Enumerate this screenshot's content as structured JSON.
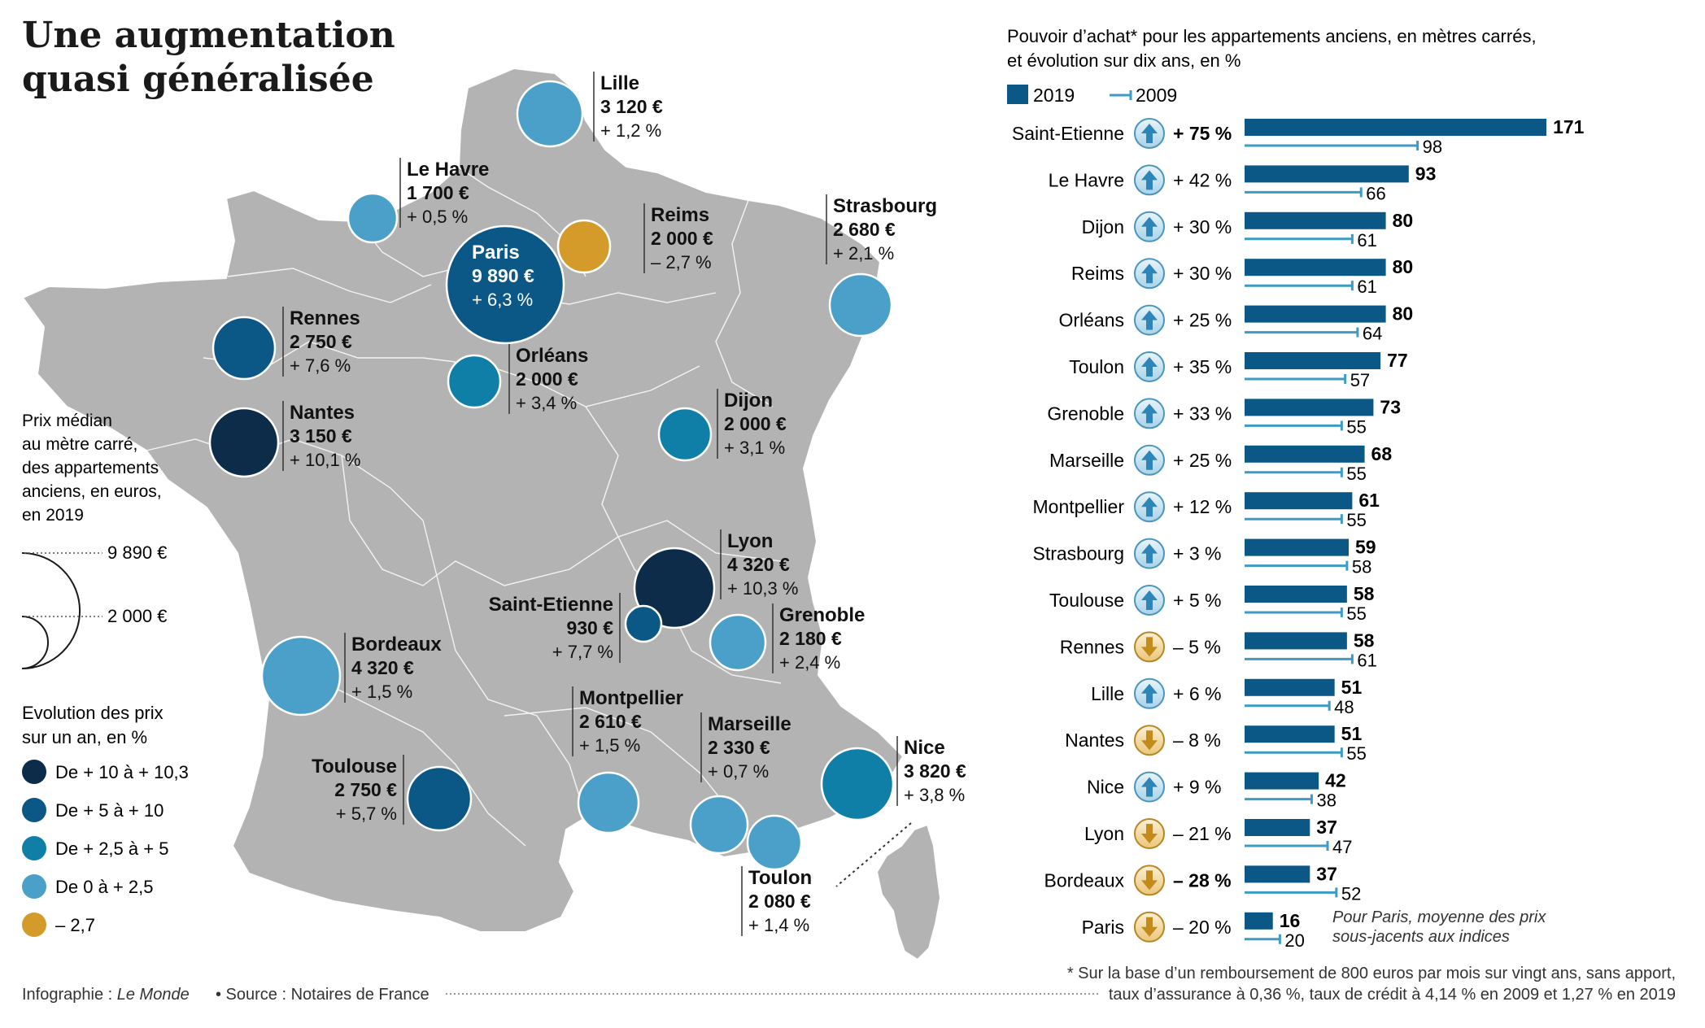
{
  "title_lines": [
    "Une augmentation",
    "quasi généralisée"
  ],
  "map": {
    "size_legend": {
      "title_lines": [
        "Prix médian",
        "au mètre carré,",
        "des appartements",
        "anciens, en euros,",
        "en 2019"
      ],
      "large_label": "9 890 €",
      "small_label": "2 000 €"
    },
    "color_legend": {
      "title_lines": [
        "Evolution des prix",
        "sur un an, en %"
      ],
      "items": [
        {
          "label": "De + 10 à + 10,3",
          "color": "#0c2c4a"
        },
        {
          "label": "De + 5 à + 10",
          "color": "#0b5887"
        },
        {
          "label": "De + 2,5 à + 5",
          "color": "#0f7fa8"
        },
        {
          "label": "De 0 à + 2,5",
          "color": "#4aa0c8"
        },
        {
          "label": "– 2,7",
          "color": "#d49b2a"
        }
      ]
    },
    "cities": [
      {
        "name": "Lille",
        "price": "3 120 €",
        "change": "+ 1,2 %",
        "price_value": 3120,
        "change_value": 1.2,
        "color": "#4aa0c8"
      },
      {
        "name": "Le Havre",
        "price": "1 700 €",
        "change": "+ 0,5 %",
        "price_value": 1700,
        "change_value": 0.5,
        "color": "#4aa0c8"
      },
      {
        "name": "Reims",
        "price": "2 000 €",
        "change": "– 2,7 %",
        "price_value": 2000,
        "change_value": -2.7,
        "color": "#d49b2a"
      },
      {
        "name": "Strasbourg",
        "price": "2 680 €",
        "change": "+ 2,1 %",
        "price_value": 2680,
        "change_value": 2.1,
        "color": "#4aa0c8"
      },
      {
        "name": "Paris",
        "price": "9 890 €",
        "change": "+ 6,3 %",
        "price_value": 9890,
        "change_value": 6.3,
        "color": "#0b5887"
      },
      {
        "name": "Rennes",
        "price": "2 750 €",
        "change": "+ 7,6 %",
        "price_value": 2750,
        "change_value": 7.6,
        "color": "#0b5887"
      },
      {
        "name": "Orléans",
        "price": "2 000 €",
        "change": "+ 3,4 %",
        "price_value": 2000,
        "change_value": 3.4,
        "color": "#0f7fa8"
      },
      {
        "name": "Nantes",
        "price": "3 150 €",
        "change": "+ 10,1 %",
        "price_value": 3150,
        "change_value": 10.1,
        "color": "#0c2c4a"
      },
      {
        "name": "Dijon",
        "price": "2 000 €",
        "change": "+ 3,1 %",
        "price_value": 2000,
        "change_value": 3.1,
        "color": "#0f7fa8"
      },
      {
        "name": "Lyon",
        "price": "4 320 €",
        "change": "+ 10,3 %",
        "price_value": 4320,
        "change_value": 10.3,
        "color": "#0c2c4a"
      },
      {
        "name": "Saint-Etienne",
        "price": "930 €",
        "change": "+ 7,7 %",
        "price_value": 930,
        "change_value": 7.7,
        "color": "#0b5887"
      },
      {
        "name": "Grenoble",
        "price": "2 180 €",
        "change": "+ 2,4 %",
        "price_value": 2180,
        "change_value": 2.4,
        "color": "#4aa0c8"
      },
      {
        "name": "Bordeaux",
        "price": "4 320 €",
        "change": "+ 1,5 %",
        "price_value": 4320,
        "change_value": 1.5,
        "color": "#4aa0c8"
      },
      {
        "name": "Montpellier",
        "price": "2 610 €",
        "change": "+ 1,5 %",
        "price_value": 2610,
        "change_value": 1.5,
        "color": "#4aa0c8"
      },
      {
        "name": "Marseille",
        "price": "2 330 €",
        "change": "+ 0,7 %",
        "price_value": 2330,
        "change_value": 0.7,
        "color": "#4aa0c8"
      },
      {
        "name": "Toulouse",
        "price": "2 750 €",
        "change": "+ 5,7 %",
        "price_value": 2750,
        "change_value": 5.7,
        "color": "#0b5887"
      },
      {
        "name": "Nice",
        "price": "3 820 €",
        "change": "+ 3,8 %",
        "price_value": 3820,
        "change_value": 3.8,
        "color": "#0f7fa8"
      },
      {
        "name": "Toulon",
        "price": "2 080 €",
        "change": "+ 1,4 %",
        "price_value": 2080,
        "change_value": 1.4,
        "color": "#4aa0c8"
      }
    ]
  },
  "chart_data": {
    "type": "bar",
    "title_lines": [
      "Pouvoir d’achat* pour les appartements anciens, en mètres carrés,",
      "et évolution sur dix ans, en %"
    ],
    "legend": [
      "2019",
      "2009"
    ],
    "series": [
      {
        "name": "2019",
        "color": "#0b5887"
      },
      {
        "name": "2009",
        "color": "#3d9bc4"
      }
    ],
    "categories": [
      "Saint-Etienne",
      "Le Havre",
      "Dijon",
      "Reims",
      "Orléans",
      "Toulon",
      "Grenoble",
      "Marseille",
      "Montpellier",
      "Strasbourg",
      "Toulouse",
      "Rennes",
      "Lille",
      "Nantes",
      "Nice",
      "Lyon",
      "Bordeaux",
      "Paris"
    ],
    "values_2019": [
      171,
      93,
      80,
      80,
      80,
      77,
      73,
      68,
      61,
      59,
      58,
      58,
      51,
      51,
      42,
      37,
      37,
      16
    ],
    "values_2009": [
      98,
      66,
      61,
      61,
      64,
      57,
      55,
      55,
      55,
      58,
      55,
      61,
      48,
      55,
      38,
      47,
      52,
      20
    ],
    "changes": [
      "+ 75 %",
      "+ 42 %",
      "+ 30 %",
      "+ 30 %",
      "+ 25 %",
      "+ 35 %",
      "+ 33 %",
      "+ 25 %",
      "+ 12 %",
      "+ 3 %",
      "+ 5 %",
      "– 5 %",
      "+ 6 %",
      "– 8 %",
      "+ 9 %",
      "– 21 %",
      "– 28 %",
      "– 20 %"
    ],
    "directions": [
      "up",
      "up",
      "up",
      "up",
      "up",
      "up",
      "up",
      "up",
      "up",
      "up",
      "up",
      "down",
      "up",
      "down",
      "up",
      "down",
      "down",
      "down"
    ],
    "paris_note_lines": [
      "Pour Paris, moyenne des prix",
      "sous-jacents aux indices"
    ]
  },
  "footnote_lines": [
    "* Sur la base d’un remboursement de 800 euros par mois sur vingt ans, sans apport,",
    "taux d’assurance à 0,36 %, taux de crédit à 4,14 % en 2009 et 1,27 % en 2019"
  ],
  "credit": {
    "prefix": "Infographie : ",
    "outlet": "Le Monde",
    "source": "• Source : Notaires de France"
  }
}
